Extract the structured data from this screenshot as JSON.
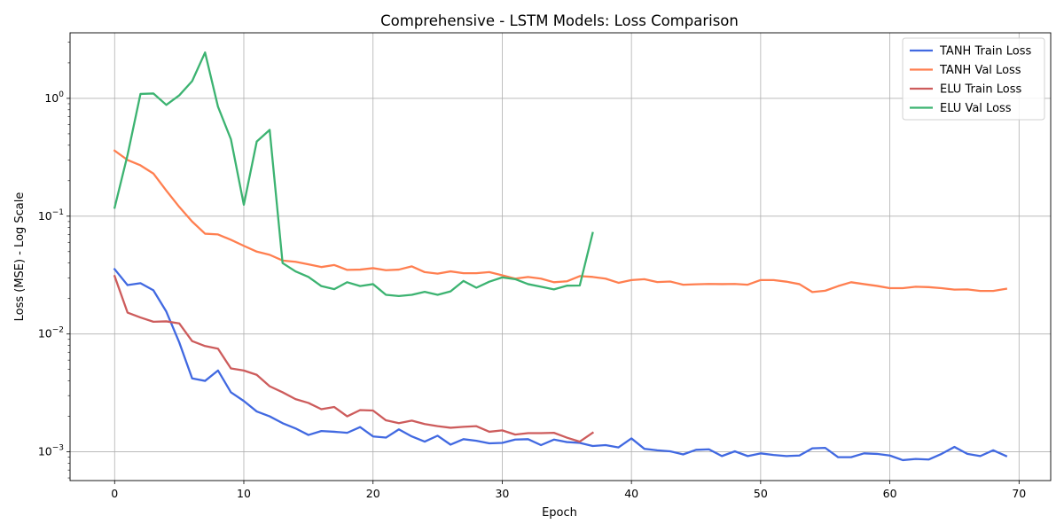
{
  "chart_data": {
    "type": "line",
    "title": "Comprehensive - LSTM Models: Loss Comparison",
    "xlabel": "Epoch",
    "ylabel": "Loss (MSE) - Log Scale",
    "xlim": [
      -3.45,
      72.45
    ],
    "ylim": [
      0.00057,
      3.6
    ],
    "yscale": "log",
    "grid": true,
    "legend_position": "top-right",
    "x_ticks": [
      0,
      10,
      20,
      30,
      40,
      50,
      60,
      70
    ],
    "y_ticks": [
      {
        "value": 0.001,
        "base": "10",
        "exp": "−3"
      },
      {
        "value": 0.01,
        "base": "10",
        "exp": "−2"
      },
      {
        "value": 0.1,
        "base": "10",
        "exp": "−1"
      },
      {
        "value": 1,
        "base": "10",
        "exp": "0"
      }
    ],
    "series": [
      {
        "name": "TANH Train Loss",
        "color": "#4169e1",
        "values": [
          0.0355,
          0.026,
          0.027,
          0.0235,
          0.0155,
          0.0085,
          0.0042,
          0.004,
          0.0049,
          0.0032,
          0.0027,
          0.0022,
          0.002,
          0.00175,
          0.00158,
          0.00139,
          0.0015,
          0.00148,
          0.00145,
          0.00162,
          0.00135,
          0.00132,
          0.00155,
          0.00135,
          0.00122,
          0.00137,
          0.00115,
          0.00128,
          0.00124,
          0.00118,
          0.00119,
          0.00127,
          0.00128,
          0.00114,
          0.00127,
          0.00121,
          0.00119,
          0.00112,
          0.00114,
          0.00109,
          0.0013,
          0.00106,
          0.00103,
          0.00101,
          0.00095,
          0.00104,
          0.00105,
          0.00092,
          0.00101,
          0.00092,
          0.00097,
          0.00094,
          0.00092,
          0.00093,
          0.00107,
          0.00108,
          0.0009,
          0.0009,
          0.00097,
          0.00096,
          0.00093,
          0.00085,
          0.00087,
          0.00086,
          0.00096,
          0.0011,
          0.00096,
          0.00092,
          0.00103,
          0.00092
        ]
      },
      {
        "name": "TANH Val Loss",
        "color": "#ff7f50",
        "values": [
          0.36,
          0.3,
          0.27,
          0.23,
          0.165,
          0.12,
          0.09,
          0.071,
          0.07,
          0.063,
          0.056,
          0.05,
          0.047,
          0.042,
          0.041,
          0.039,
          0.037,
          0.0385,
          0.035,
          0.0352,
          0.0362,
          0.0348,
          0.0352,
          0.0375,
          0.0335,
          0.0325,
          0.034,
          0.0328,
          0.0328,
          0.0335,
          0.0315,
          0.0295,
          0.0305,
          0.0295,
          0.0275,
          0.028,
          0.031,
          0.0305,
          0.0295,
          0.0272,
          0.0287,
          0.0292,
          0.0276,
          0.0279,
          0.0262,
          0.0264,
          0.0266,
          0.0265,
          0.0266,
          0.0262,
          0.0287,
          0.0287,
          0.0278,
          0.0265,
          0.0227,
          0.0233,
          0.0255,
          0.0275,
          0.0265,
          0.0256,
          0.0245,
          0.0245,
          0.0252,
          0.025,
          0.0245,
          0.0238,
          0.0239,
          0.0232,
          0.0232,
          0.0242
        ]
      },
      {
        "name": "ELU Train Loss",
        "color": "#cd5c5c",
        "values": [
          0.031,
          0.0152,
          0.0138,
          0.0127,
          0.0128,
          0.0123,
          0.0087,
          0.0079,
          0.0075,
          0.0051,
          0.0049,
          0.0045,
          0.0036,
          0.0032,
          0.0028,
          0.0026,
          0.0023,
          0.0024,
          0.002,
          0.00226,
          0.00224,
          0.00185,
          0.00175,
          0.00184,
          0.00172,
          0.00165,
          0.0016,
          0.00163,
          0.00165,
          0.00148,
          0.00152,
          0.0014,
          0.00144,
          0.00144,
          0.00145,
          0.00132,
          0.00122,
          0.00145
        ]
      },
      {
        "name": "ELU Val Loss",
        "color": "#3cb371",
        "values": [
          0.118,
          0.33,
          1.09,
          1.1,
          0.88,
          1.06,
          1.4,
          2.45,
          0.85,
          0.45,
          0.125,
          0.43,
          0.54,
          0.04,
          0.034,
          0.0305,
          0.0255,
          0.024,
          0.0275,
          0.0255,
          0.0265,
          0.0215,
          0.021,
          0.0215,
          0.0228,
          0.0215,
          0.023,
          0.0282,
          0.0247,
          0.0278,
          0.0302,
          0.0292,
          0.0265,
          0.0252,
          0.0239,
          0.0257,
          0.0258,
          0.072
        ]
      }
    ]
  }
}
